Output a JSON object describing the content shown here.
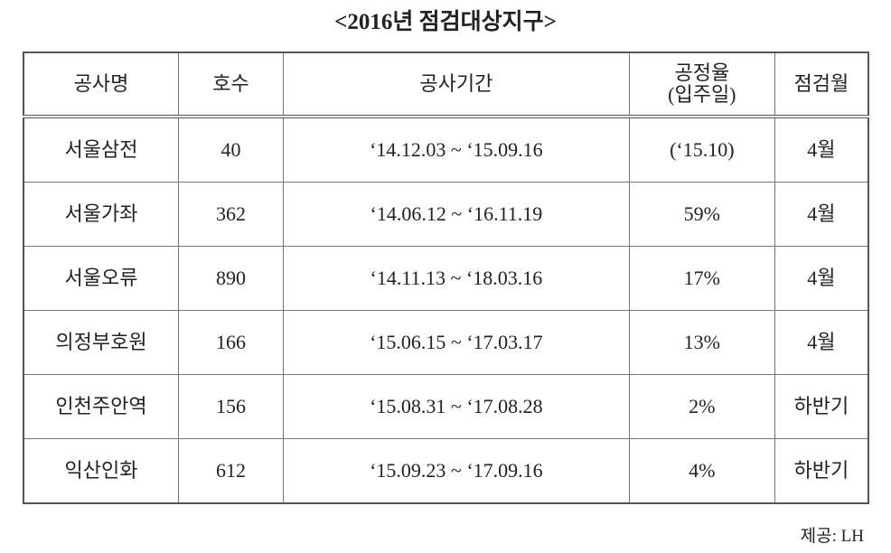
{
  "title": "<2016년 점검대상지구>",
  "table": {
    "header": [
      "공사명",
      "호수",
      "공사기간",
      "공정율\n(입주일)",
      "점검월"
    ],
    "rows": [
      [
        "서울삼전",
        40,
        "‘14.12.03 ~ ‘15.09.16",
        "(‘15.10)",
        "4월"
      ],
      [
        "서울가좌",
        362,
        "‘14.06.12 ~ ‘16.11.19",
        "59%",
        "4월"
      ],
      [
        "서울오류",
        890,
        "‘14.11.13 ~ ‘18.03.16",
        "17%",
        "4월"
      ],
      [
        "의정부호원",
        166,
        "‘15.06.15 ~ ‘17.03.17",
        "13%",
        "4월"
      ],
      [
        "인천주안역",
        156,
        "‘15.08.31 ~ ‘17.08.28",
        "2%",
        "하반기"
      ],
      [
        "익산인화",
        612,
        "‘15.09.23 ~ ‘17.09.16",
        "4%",
        "하반기"
      ]
    ]
  },
  "source": "제공: LH"
}
